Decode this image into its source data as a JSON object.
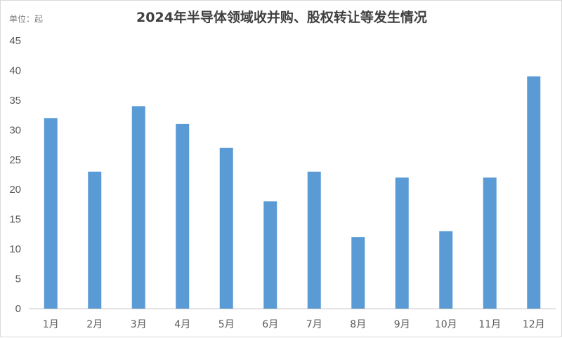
{
  "chart_data": {
    "type": "bar",
    "title": "2024年半导体领域收并购、股权转让等发生情况",
    "unit_label": "单位：起",
    "categories": [
      "1月",
      "2月",
      "3月",
      "4月",
      "5月",
      "6月",
      "7月",
      "8月",
      "9月",
      "10月",
      "11月",
      "12月"
    ],
    "values": [
      32,
      23,
      34,
      31,
      27,
      18,
      23,
      12,
      22,
      13,
      22,
      39
    ],
    "ylim": [
      0,
      45
    ],
    "yticks": [
      0,
      5,
      10,
      15,
      20,
      25,
      30,
      35,
      40,
      45
    ],
    "grid": false,
    "legend": "none",
    "colors": {
      "bar": "#5B9BD5",
      "axis": "#bfbfbf",
      "text": "#595959"
    }
  }
}
